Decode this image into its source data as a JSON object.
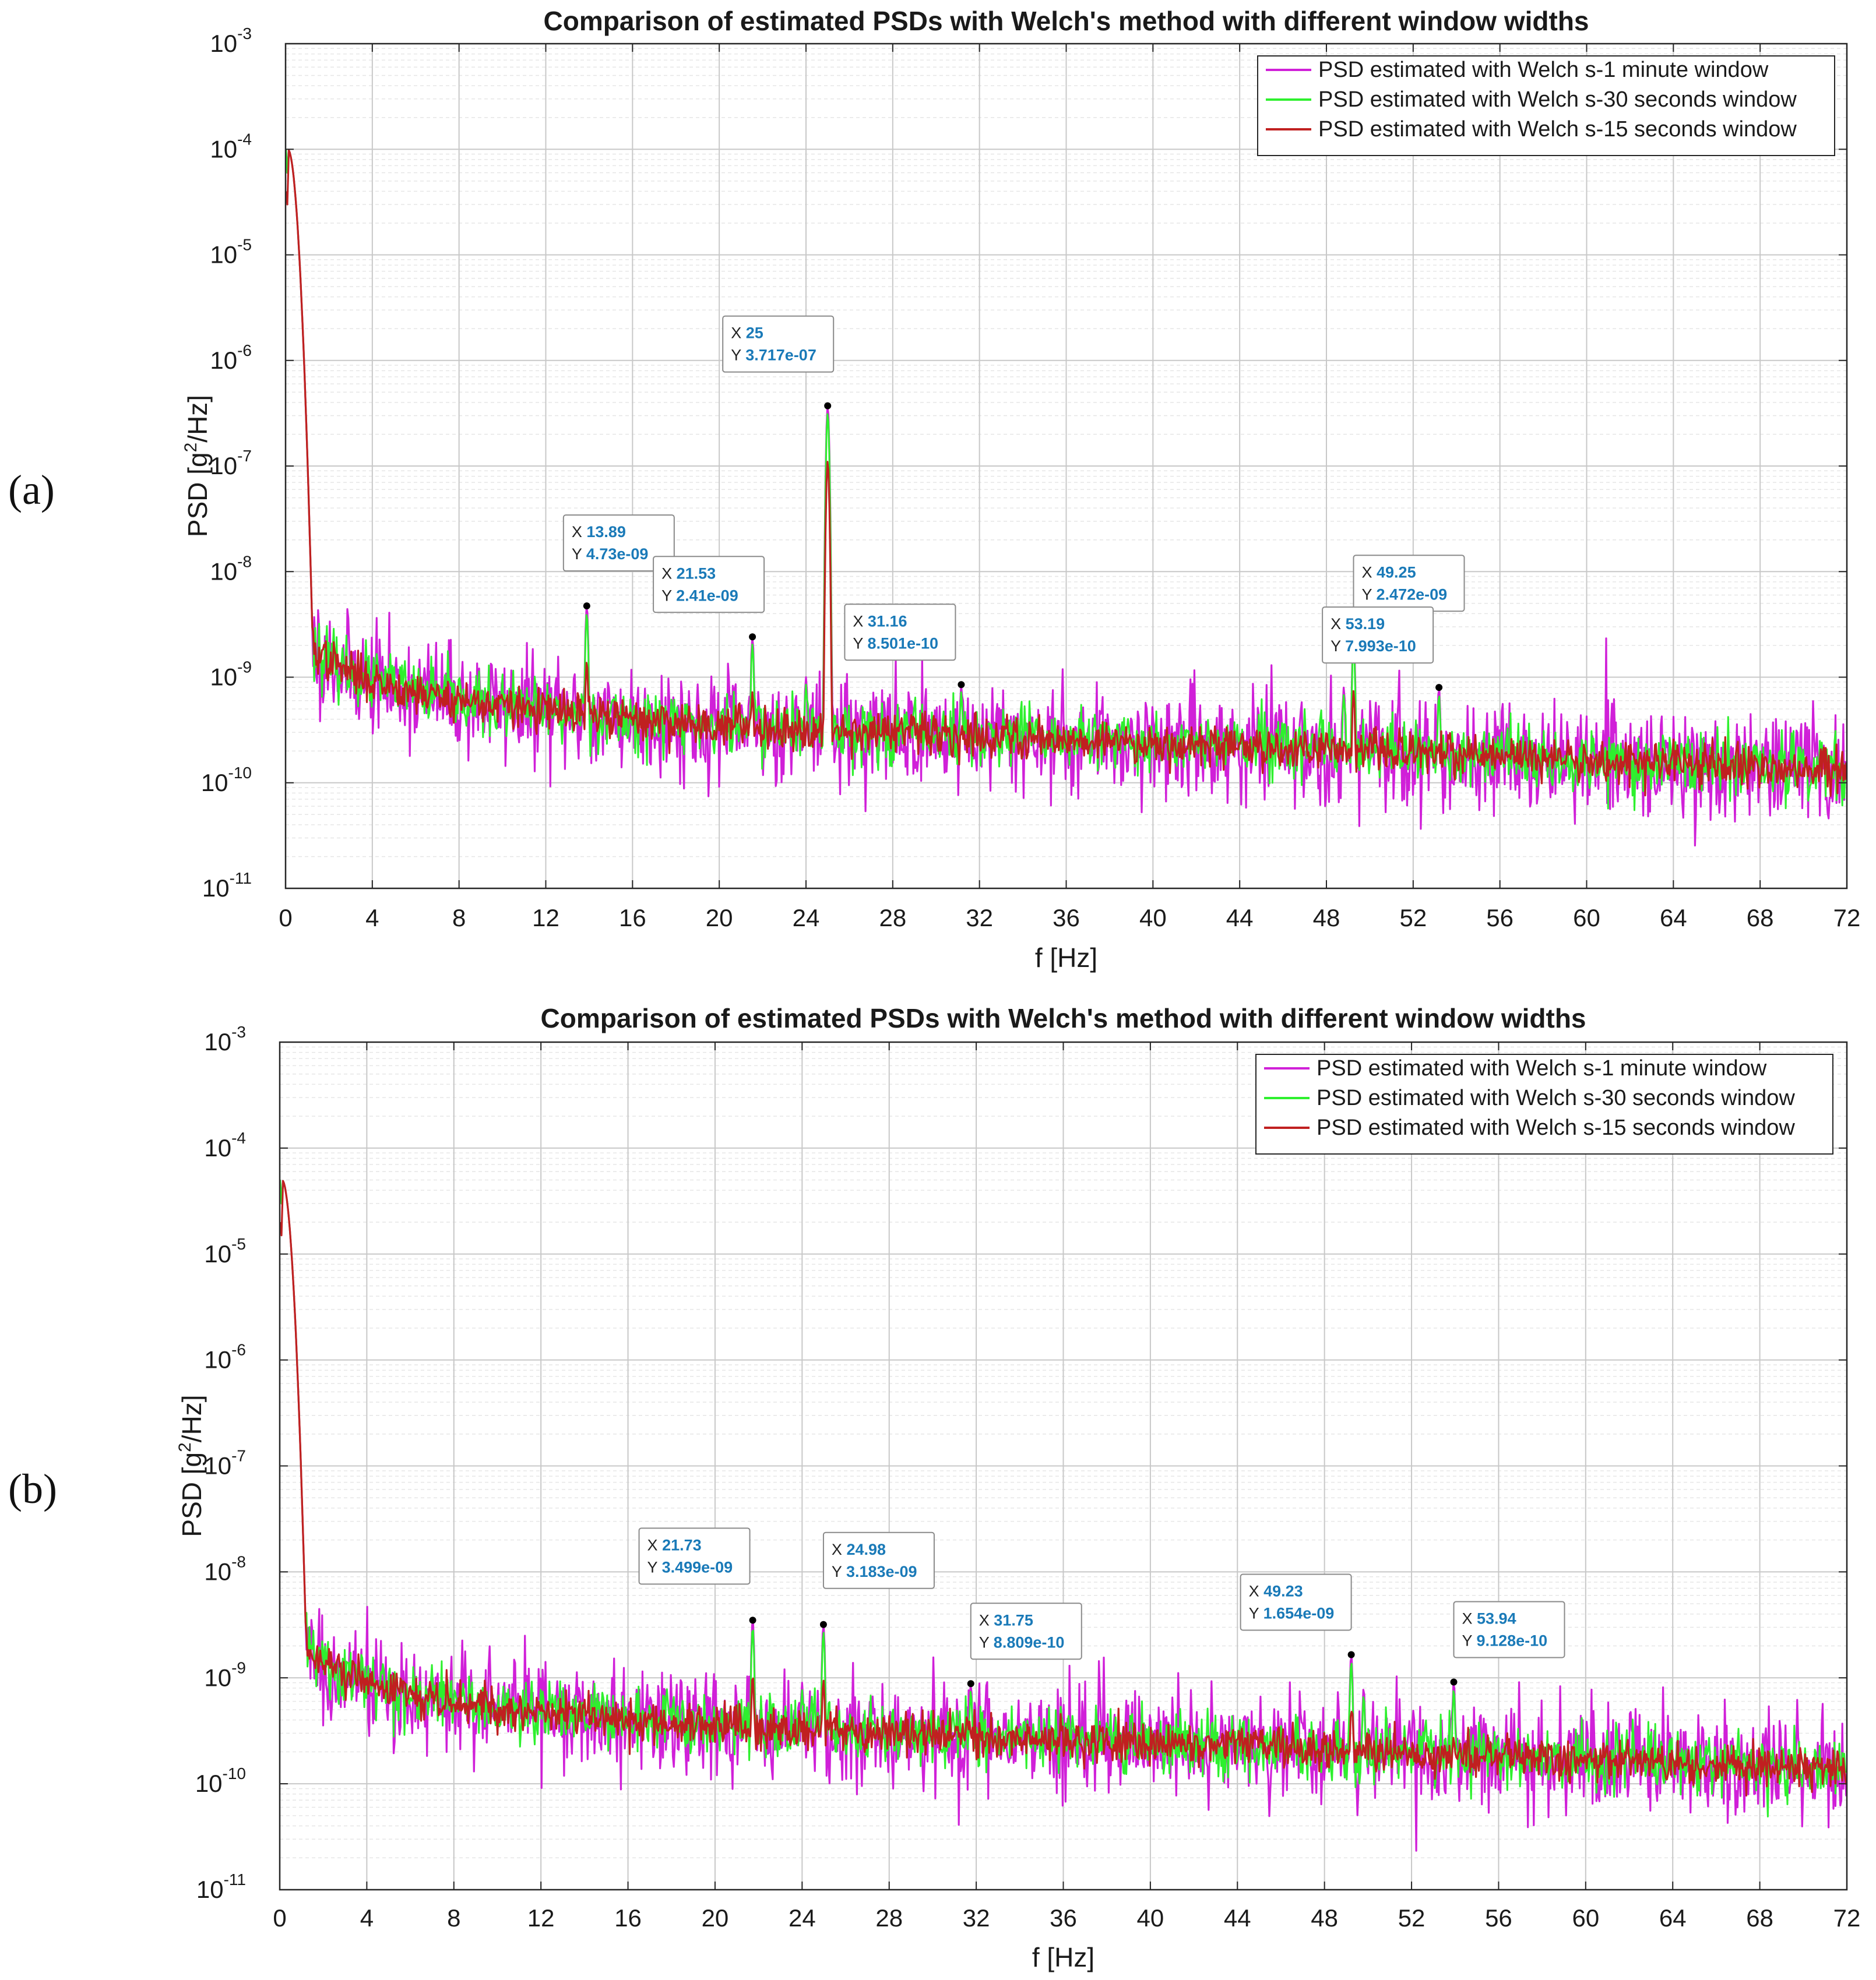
{
  "panel_labels": [
    "(a)",
    "(b)"
  ],
  "colors": {
    "series1": "#d020d8",
    "series2": "#2ef02e",
    "series3": "#c02020",
    "grid_major": "#c8c8c8",
    "grid_minor": "#e6e6e6",
    "axis": "#262626",
    "tip_value": "#1a7ab8"
  },
  "chart_data": [
    {
      "type": "line",
      "panel": "(a)",
      "title": "Comparison of estimated PSDs with Welch's method with different window widths",
      "xlabel": "f [Hz]",
      "ylabel_base": "PSD [g",
      "ylabel_sup": "2",
      "ylabel_tail": "/Hz]",
      "xlim": [
        0,
        72
      ],
      "ylim": [
        1e-11,
        0.001
      ],
      "yscale": "log",
      "grid": true,
      "xticks": [
        "0",
        "4",
        "8",
        "12",
        "16",
        "20",
        "24",
        "28",
        "32",
        "36",
        "40",
        "44",
        "48",
        "52",
        "56",
        "60",
        "64",
        "68",
        "72"
      ],
      "yticks": [
        {
          "base": "10",
          "exp": "-11"
        },
        {
          "base": "10",
          "exp": "-10"
        },
        {
          "base": "10",
          "exp": "-9"
        },
        {
          "base": "10",
          "exp": "-8"
        },
        {
          "base": "10",
          "exp": "-7"
        },
        {
          "base": "10",
          "exp": "-6"
        },
        {
          "base": "10",
          "exp": "-5"
        },
        {
          "base": "10",
          "exp": "-4"
        },
        {
          "base": "10",
          "exp": "-3"
        }
      ],
      "legend_position": "top-right",
      "series": [
        {
          "name": "PSD estimated with Welch s-1 minute window",
          "color": "#d020d8"
        },
        {
          "name": "PSD estimated with Welch s-30 seconds window",
          "color": "#2ef02e"
        },
        {
          "name": "PSD estimated with Welch s-15 seconds window",
          "color": "#c02020"
        }
      ],
      "background": {
        "x0": 0.15,
        "y0": 7e-09,
        "x_mid": 20,
        "y_mid": 3.5e-10,
        "y_end": 1.3e-10
      },
      "peaks": [
        {
          "x": 0.1,
          "y": 0.0001,
          "labeled": false
        },
        {
          "x": 13.89,
          "y": 4.73e-09,
          "labeled": true,
          "x_label": "13.89",
          "y_label": "4.73e-09"
        },
        {
          "x": 21.53,
          "y": 2.41e-09,
          "labeled": true,
          "x_label": "21.53",
          "y_label": "2.41e-09"
        },
        {
          "x": 24.0,
          "y": 1e-09,
          "labeled": false
        },
        {
          "x": 25,
          "y": 3.717e-07,
          "labeled": true,
          "x_label": "25",
          "y_label": "3.717e-07"
        },
        {
          "x": 31.16,
          "y": 8.501e-10,
          "labeled": true,
          "x_label": "31.16",
          "y_label": "8.501e-10"
        },
        {
          "x": 48.8,
          "y": 8e-10,
          "labeled": false
        },
        {
          "x": 49.25,
          "y": 2.472e-09,
          "labeled": true,
          "x_label": "49.25",
          "y_label": "2.472e-09"
        },
        {
          "x": 53.19,
          "y": 7.993e-10,
          "labeled": true,
          "x_label": "53.19",
          "y_label": "7.993e-10"
        }
      ],
      "datatip_prefix_x": "X",
      "datatip_prefix_y": "Y"
    },
    {
      "type": "line",
      "panel": "(b)",
      "title": "Comparison of estimated PSDs with Welch's method with different window widths",
      "xlabel": "f [Hz]",
      "ylabel_base": "PSD [g",
      "ylabel_sup": "2",
      "ylabel_tail": "/Hz]",
      "xlim": [
        0,
        72
      ],
      "ylim": [
        1e-11,
        0.001
      ],
      "yscale": "log",
      "grid": true,
      "xticks": [
        "0",
        "4",
        "8",
        "12",
        "16",
        "20",
        "24",
        "28",
        "32",
        "36",
        "40",
        "44",
        "48",
        "52",
        "56",
        "60",
        "64",
        "68",
        "72"
      ],
      "yticks": [
        {
          "base": "10",
          "exp": "-11"
        },
        {
          "base": "10",
          "exp": "-10"
        },
        {
          "base": "10",
          "exp": "-9"
        },
        {
          "base": "10",
          "exp": "-8"
        },
        {
          "base": "10",
          "exp": "-7"
        },
        {
          "base": "10",
          "exp": "-6"
        },
        {
          "base": "10",
          "exp": "-5"
        },
        {
          "base": "10",
          "exp": "-4"
        },
        {
          "base": "10",
          "exp": "-3"
        }
      ],
      "legend_position": "top-right",
      "series": [
        {
          "name": "PSD estimated with Welch s-1 minute window",
          "color": "#d020d8"
        },
        {
          "name": "PSD estimated with Welch s-30 seconds window",
          "color": "#2ef02e"
        },
        {
          "name": "PSD estimated with Welch s-15 seconds window",
          "color": "#c02020"
        }
      ],
      "background": {
        "x0": 0.15,
        "y0": 6e-09,
        "x_mid": 20,
        "y_mid": 3.5e-10,
        "y_end": 1.4e-10
      },
      "peaks": [
        {
          "x": 0.1,
          "y": 5e-05,
          "labeled": false
        },
        {
          "x": 21.73,
          "y": 3.499e-09,
          "labeled": true,
          "x_label": "21.73",
          "y_label": "3.499e-09"
        },
        {
          "x": 24.0,
          "y": 9e-10,
          "labeled": false
        },
        {
          "x": 24.98,
          "y": 3.183e-09,
          "labeled": true,
          "x_label": "24.98",
          "y_label": "3.183e-09"
        },
        {
          "x": 31.75,
          "y": 8.809e-10,
          "labeled": true,
          "x_label": "31.75",
          "y_label": "8.809e-10"
        },
        {
          "x": 49.23,
          "y": 1.654e-09,
          "labeled": true,
          "x_label": "49.23",
          "y_label": "1.654e-09"
        },
        {
          "x": 49.8,
          "y": 8e-10,
          "labeled": false
        },
        {
          "x": 53.94,
          "y": 9.128e-10,
          "labeled": true,
          "x_label": "53.94",
          "y_label": "9.128e-10"
        }
      ],
      "datatip_prefix_x": "X",
      "datatip_prefix_y": "Y"
    }
  ]
}
